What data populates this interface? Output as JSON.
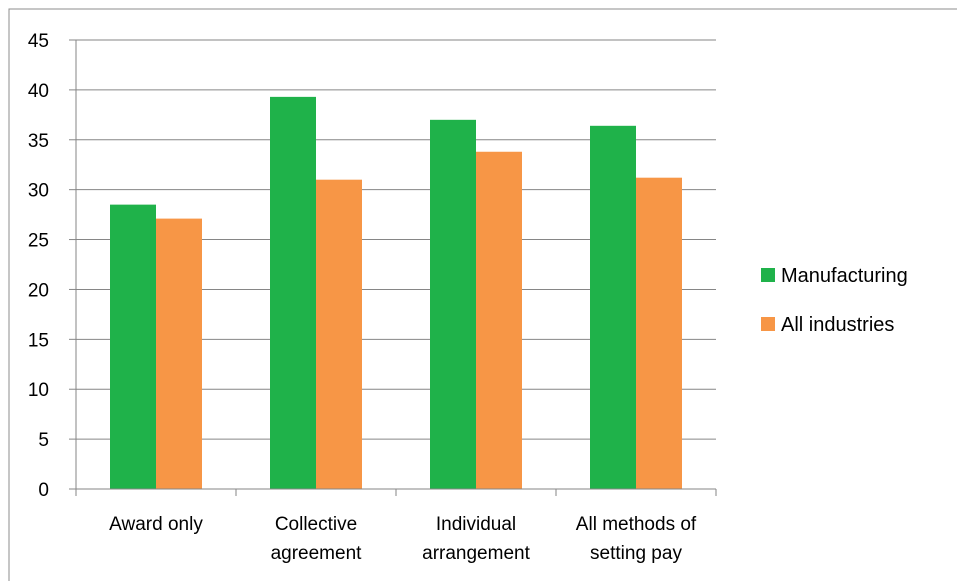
{
  "chart_data": {
    "type": "bar",
    "title": "",
    "xlabel": "",
    "ylabel": "",
    "categories": [
      [
        "Award only"
      ],
      [
        "Collective",
        "agreement"
      ],
      [
        "Individual",
        "arrangement"
      ],
      [
        "All methods of",
        "setting pay"
      ]
    ],
    "series": [
      {
        "name": "Manufacturing",
        "color": "#1fb24a",
        "values": [
          28.5,
          39.3,
          37.0,
          36.4
        ]
      },
      {
        "name": "All industries",
        "color": "#f79646",
        "values": [
          27.1,
          31.0,
          33.8,
          31.2
        ]
      }
    ],
    "ylim": [
      0,
      45
    ],
    "yticks": [
      "0",
      "5",
      "10",
      "15",
      "20",
      "25",
      "30",
      "35",
      "40",
      "45"
    ],
    "grid": true,
    "legend_position": "right"
  }
}
